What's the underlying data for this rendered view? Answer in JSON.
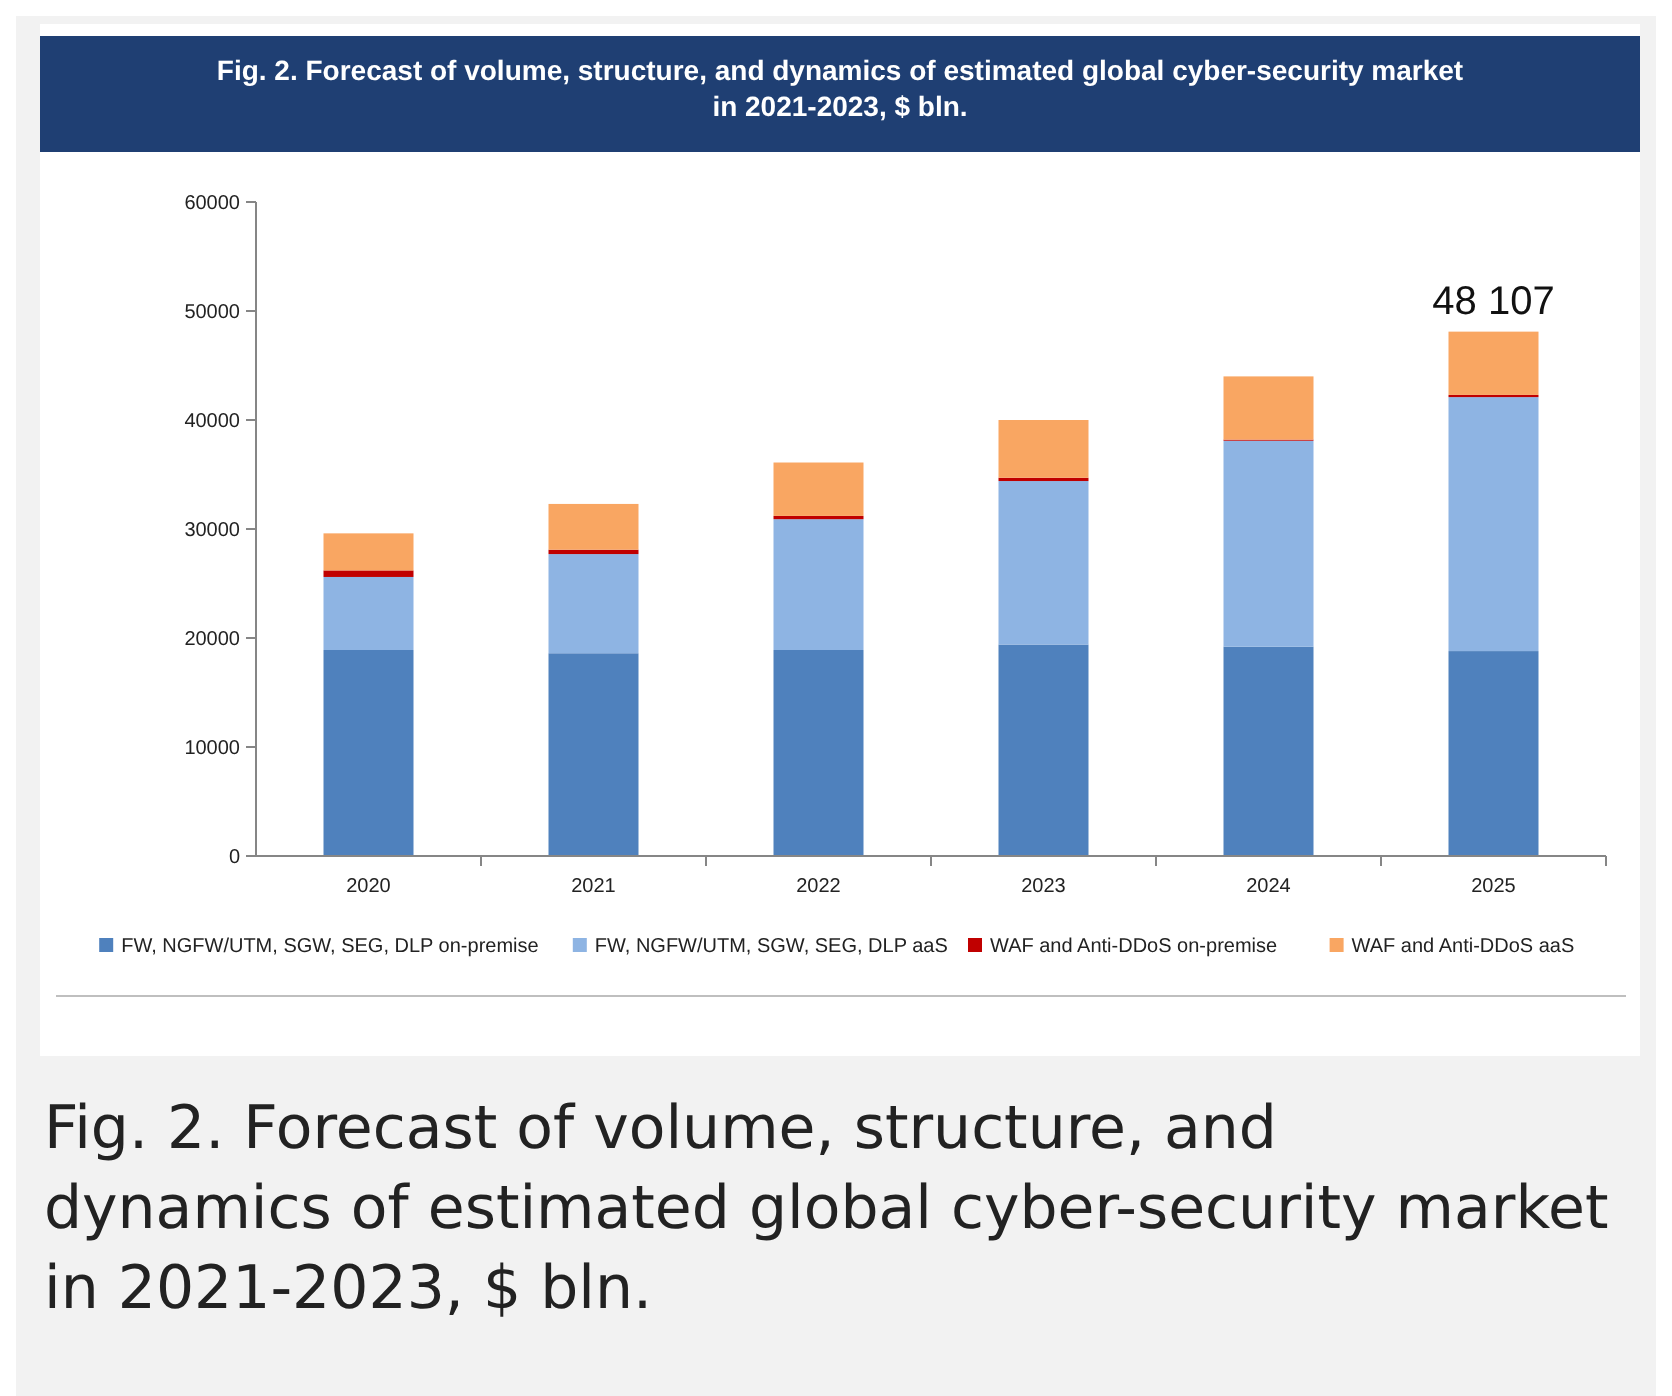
{
  "chart_data": {
    "type": "bar",
    "stacked": true,
    "title": "Fig. 2. Forecast of volume, structure, and dynamics of estimated global cyber-security market in 2021-2023, $ bln.",
    "categories": [
      "2020",
      "2021",
      "2022",
      "2023",
      "2024",
      "2025"
    ],
    "series": [
      {
        "name": "FW, NGFW/UTM, SGW, SEG, DLP on-premise",
        "color": "#4f81bd",
        "values": [
          18900,
          18600,
          18900,
          19400,
          19200,
          18800
        ]
      },
      {
        "name": "FW, NGFW/UTM, SGW, SEG, DLP aaS",
        "color": "#8eb4e3",
        "values": [
          6700,
          9100,
          12000,
          15000,
          18900,
          23300
        ]
      },
      {
        "name": "WAF and Anti-DDoS on-premise",
        "color": "#c00000",
        "values": [
          600,
          400,
          300,
          300,
          100,
          200
        ]
      },
      {
        "name": "WAF and Anti-DDoS aaS",
        "color": "#f9a662",
        "values": [
          3400,
          4200,
          4900,
          5300,
          5800,
          5807
        ]
      }
    ],
    "ylim": [
      0,
      60000
    ],
    "yticks": [
      0,
      10000,
      20000,
      30000,
      40000,
      50000,
      60000
    ],
    "totals": [
      null,
      null,
      null,
      null,
      null,
      "48 107"
    ],
    "legend": "bottom",
    "grid": false,
    "annotations": [
      "Fig. 2. Forecast of volume, structure, and dynamics of estimated global cyber-security market in 2021-2023, $ bln."
    ]
  }
}
